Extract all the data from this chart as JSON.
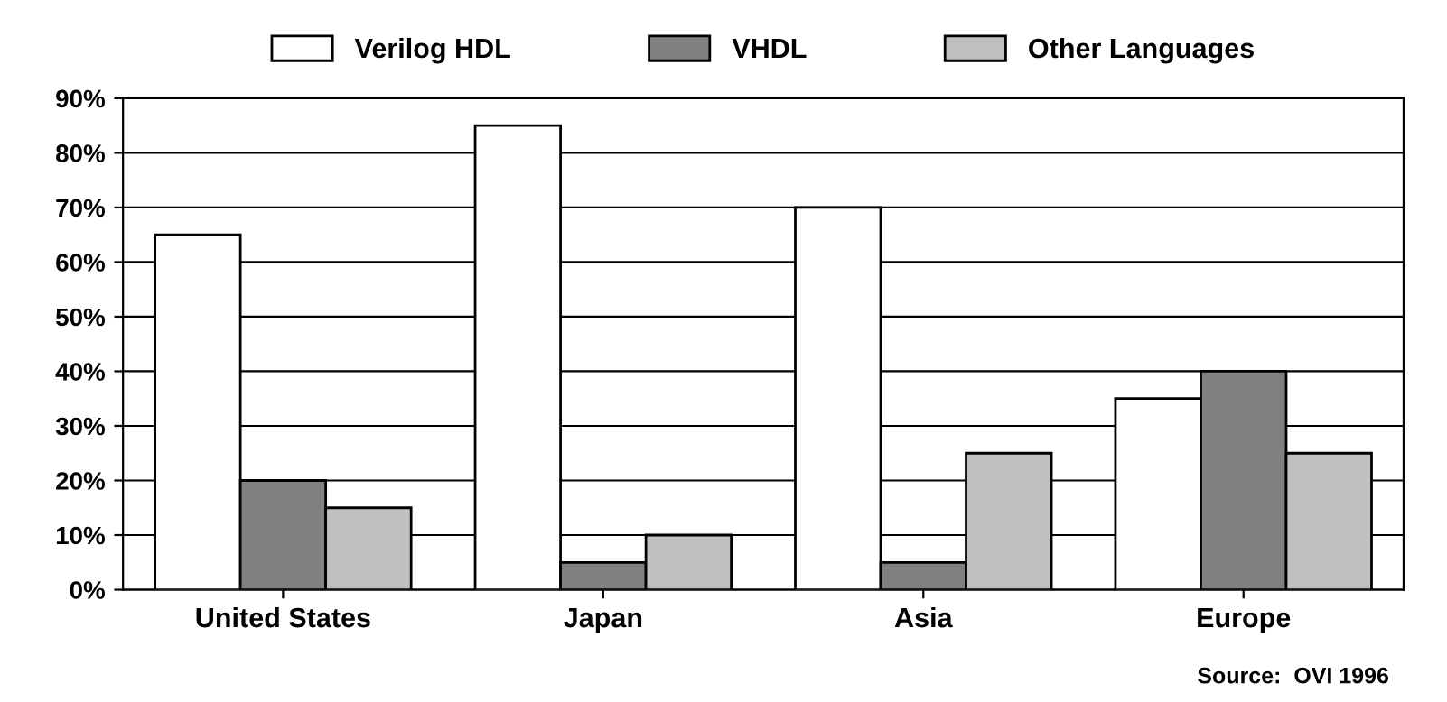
{
  "chart_data": {
    "type": "bar",
    "categories": [
      "United States",
      "Japan",
      "Asia",
      "Europe"
    ],
    "series": [
      {
        "name": "Verilog HDL",
        "color": "#ffffff",
        "values": [
          65,
          85,
          70,
          35
        ]
      },
      {
        "name": "VHDL",
        "color": "#808080",
        "values": [
          20,
          5,
          5,
          40
        ]
      },
      {
        "name": "Other Languages",
        "color": "#c0c0c0",
        "values": [
          15,
          10,
          25,
          25
        ]
      }
    ],
    "ylim": [
      0,
      90
    ],
    "yticks": [
      {
        "value": 0,
        "label": "0%"
      },
      {
        "value": 10,
        "label": "10%"
      },
      {
        "value": 20,
        "label": "20%"
      },
      {
        "value": 30,
        "label": "30%"
      },
      {
        "value": 40,
        "label": "40%"
      },
      {
        "value": 50,
        "label": "50%"
      },
      {
        "value": 60,
        "label": "60%"
      },
      {
        "value": 70,
        "label": "70%"
      },
      {
        "value": 80,
        "label": "80%"
      },
      {
        "value": 90,
        "label": "90%"
      }
    ],
    "grid": "y",
    "legend": "top",
    "annotations": [
      "Source:  OVI 1996"
    ]
  }
}
